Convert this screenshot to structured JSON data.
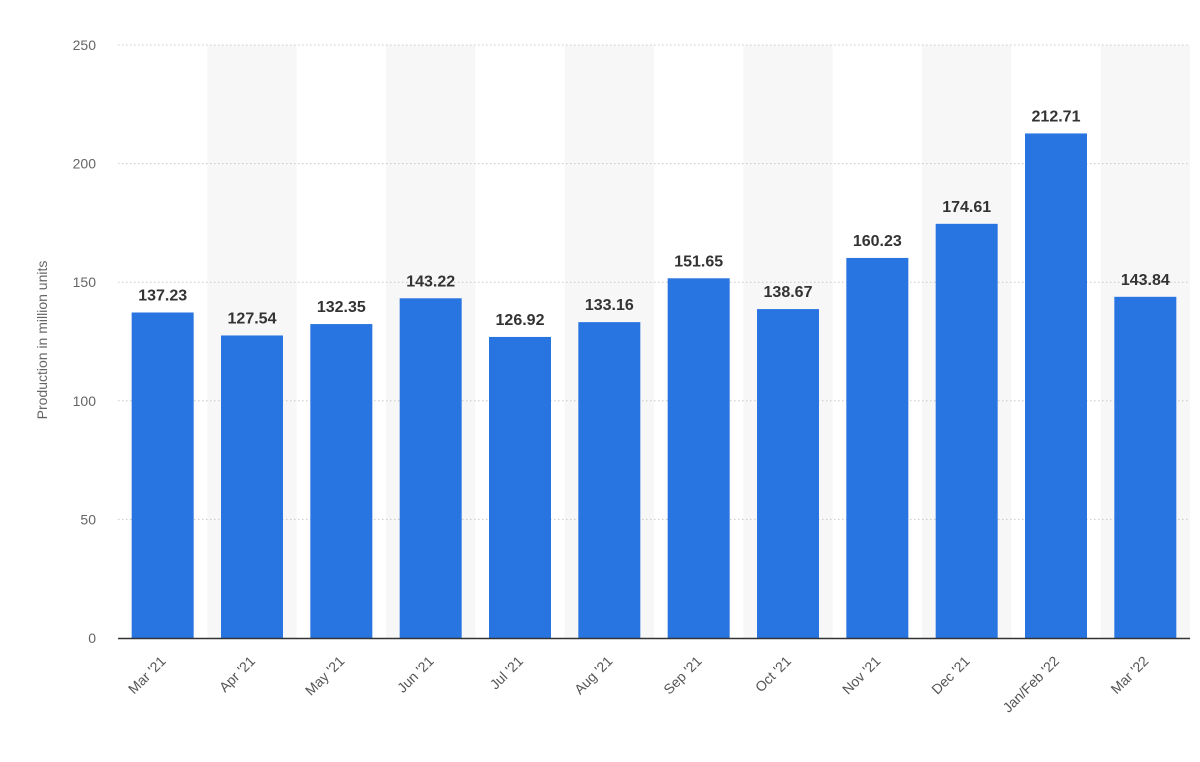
{
  "chart_data": {
    "type": "bar",
    "categories": [
      "Mar '21",
      "Apr '21",
      "May '21",
      "Jun '21",
      "Jul '21",
      "Aug '21",
      "Sep '21",
      "Oct '21",
      "Nov '21",
      "Dec '21",
      "Jan/Feb '22",
      "Mar '22"
    ],
    "values": [
      137.23,
      127.54,
      132.35,
      143.22,
      126.92,
      133.16,
      151.65,
      138.67,
      160.23,
      174.61,
      212.71,
      143.84
    ],
    "data_labels": [
      "137.23",
      "127.54",
      "132.35",
      "143.22",
      "126.92",
      "133.16",
      "151.65",
      "138.67",
      "160.23",
      "174.61",
      "212.71",
      "143.84"
    ],
    "ylabel": "Production in million units",
    "ylim": [
      0,
      250
    ],
    "yticks": [
      0,
      50,
      100,
      150,
      200,
      250
    ],
    "ytick_labels": [
      "0",
      "50",
      "100",
      "150",
      "200",
      "250"
    ],
    "grid": true,
    "alternating_column_shading": true,
    "colors": {
      "bar": "#2874e0",
      "shade": "#f7f7f7",
      "grid": "#c8c8c8",
      "baseline": "#333333"
    }
  }
}
